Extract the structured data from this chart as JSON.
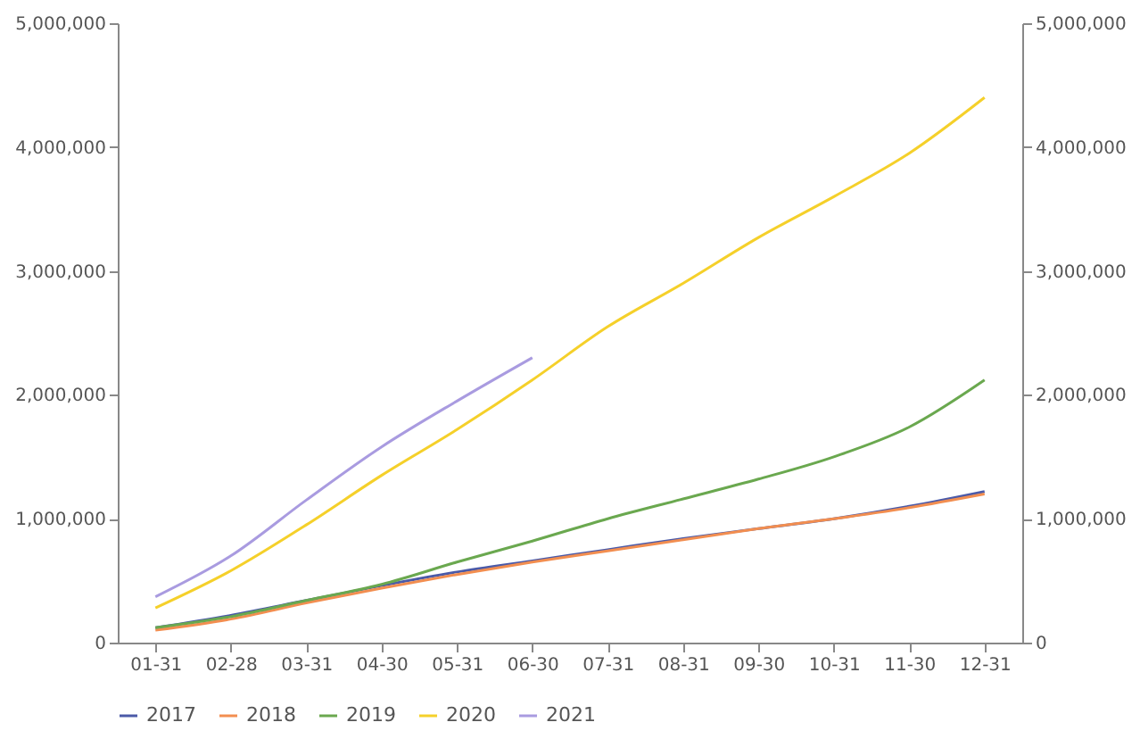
{
  "chart_data": {
    "type": "line",
    "categories": [
      "01-31",
      "02-28",
      "03-31",
      "04-30",
      "05-31",
      "06-30",
      "07-31",
      "08-31",
      "09-30",
      "10-31",
      "11-30",
      "12-31"
    ],
    "series": [
      {
        "name": "2017",
        "color": "#4b5aa8",
        "values": [
          120000,
          220000,
          340000,
          460000,
          570000,
          660000,
          750000,
          840000,
          920000,
          1000000,
          1100000,
          1220000
        ]
      },
      {
        "name": "2018",
        "color": "#f28e50",
        "values": [
          100000,
          190000,
          320000,
          440000,
          550000,
          650000,
          740000,
          830000,
          920000,
          1000000,
          1090000,
          1200000
        ]
      },
      {
        "name": "2019",
        "color": "#6aa84f",
        "values": [
          120000,
          210000,
          340000,
          470000,
          650000,
          820000,
          1000000,
          1160000,
          1320000,
          1500000,
          1740000,
          2120000
        ]
      },
      {
        "name": "2020",
        "color": "#f5d02a",
        "values": [
          280000,
          580000,
          950000,
          1350000,
          1720000,
          2120000,
          2550000,
          2900000,
          3270000,
          3600000,
          3950000,
          4400000
        ]
      },
      {
        "name": "2021",
        "color": "#a99be0",
        "values": [
          370000,
          700000,
          1150000,
          1580000,
          1950000,
          2300000,
          null,
          null,
          null,
          null,
          null,
          null
        ]
      }
    ],
    "ylim": [
      0,
      5000000
    ],
    "yticks": [
      0,
      {
        "value": 1000000,
        "label": "1,000,000"
      },
      {
        "value": 2000000,
        "label": "2,000,000"
      },
      {
        "value": 3000000,
        "label": "3,000,000"
      },
      {
        "value": 4000000,
        "label": "4,000,000"
      },
      {
        "value": 5000000,
        "label": "5,000,000"
      }
    ],
    "y2lim": [
      0,
      5000000
    ],
    "y2ticks": [
      0,
      {
        "value": 1000000,
        "label": "1,000,000"
      },
      {
        "value": 2000000,
        "label": "2,000,000"
      },
      {
        "value": 3000000,
        "label": "3,000,000"
      },
      {
        "value": 4000000,
        "label": "4,000,000"
      },
      {
        "value": 5000000,
        "label": "5,000,000"
      }
    ],
    "grid": false,
    "legend": "bottom",
    "line_style": "solid"
  }
}
